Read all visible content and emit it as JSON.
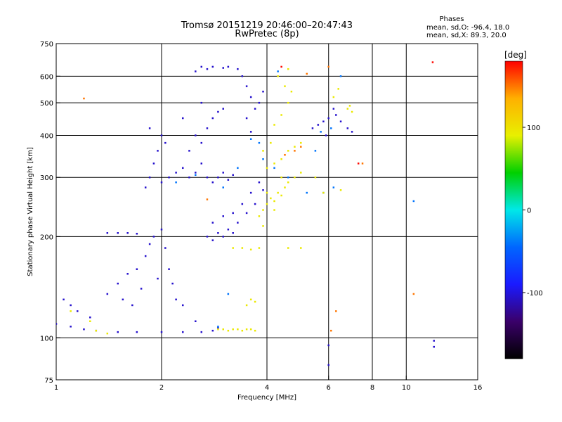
{
  "chart_data": {
    "type": "scatter",
    "title": "Tromsø 20151219 20:46:00–20:47:43",
    "subtitle": "RwPretec (8p)",
    "xlabel": "Frequency [MHz]",
    "ylabel": "Stationary phase Virtual Height [km]",
    "x_scale": "log",
    "y_scale": "log",
    "xlim": [
      1,
      16
    ],
    "ylim": [
      75,
      750
    ],
    "x_ticks": [
      1,
      2,
      4,
      6,
      8,
      10,
      16
    ],
    "y_ticks": [
      75,
      100,
      200,
      300,
      400,
      500,
      600,
      750
    ],
    "x_grid": [
      2,
      4,
      6,
      8,
      10
    ],
    "y_grid": [
      100,
      200,
      300,
      400,
      500,
      600
    ],
    "grid": true,
    "stats_header": "Phases",
    "stats_lines": [
      "mean, sd,O: -96.4, 18.0",
      "mean, sd,X: 89.3, 20.0"
    ],
    "colorbar": {
      "label": "[deg]",
      "range": [
        -180,
        180
      ],
      "ticks": [
        100,
        0,
        -100
      ],
      "colormap": [
        "#000000",
        "#3a006a",
        "#1a1aff",
        "#0066ff",
        "#00e8e8",
        "#00d000",
        "#e8f000",
        "#ffb000",
        "#ff0000"
      ]
    },
    "series": [
      {
        "phase_deg": -105,
        "points": [
          {
            "x": 1.0,
            "y": 110
          },
          {
            "x": 1.1,
            "y": 108
          },
          {
            "x": 1.2,
            "y": 106
          },
          {
            "x": 1.3,
            "y": 105
          },
          {
            "x": 1.5,
            "y": 104
          },
          {
            "x": 1.7,
            "y": 104
          },
          {
            "x": 2.0,
            "y": 104
          },
          {
            "x": 2.3,
            "y": 104
          },
          {
            "x": 2.6,
            "y": 104
          },
          {
            "x": 2.8,
            "y": 105
          },
          {
            "x": 1.05,
            "y": 130
          },
          {
            "x": 1.1,
            "y": 125
          },
          {
            "x": 1.15,
            "y": 120
          },
          {
            "x": 1.25,
            "y": 115
          },
          {
            "x": 1.4,
            "y": 135
          },
          {
            "x": 1.5,
            "y": 145
          },
          {
            "x": 1.6,
            "y": 155
          },
          {
            "x": 1.7,
            "y": 160
          },
          {
            "x": 1.8,
            "y": 175
          },
          {
            "x": 1.85,
            "y": 190
          },
          {
            "x": 1.9,
            "y": 200
          },
          {
            "x": 2.0,
            "y": 210
          },
          {
            "x": 2.05,
            "y": 185
          },
          {
            "x": 1.75,
            "y": 140
          },
          {
            "x": 1.65,
            "y": 125
          },
          {
            "x": 2.1,
            "y": 160
          },
          {
            "x": 2.15,
            "y": 145
          },
          {
            "x": 2.2,
            "y": 130
          },
          {
            "x": 1.95,
            "y": 150
          },
          {
            "x": 1.55,
            "y": 130
          },
          {
            "x": 1.4,
            "y": 205
          },
          {
            "x": 1.5,
            "y": 205
          },
          {
            "x": 1.6,
            "y": 205
          },
          {
            "x": 1.7,
            "y": 204
          },
          {
            "x": 1.8,
            "y": 280
          },
          {
            "x": 1.85,
            "y": 300
          },
          {
            "x": 1.9,
            "y": 330
          },
          {
            "x": 1.95,
            "y": 360
          },
          {
            "x": 2.0,
            "y": 400
          },
          {
            "x": 1.85,
            "y": 420
          },
          {
            "x": 2.0,
            "y": 290
          },
          {
            "x": 2.1,
            "y": 300
          },
          {
            "x": 2.2,
            "y": 310
          },
          {
            "x": 2.05,
            "y": 380
          },
          {
            "x": 2.3,
            "y": 320
          },
          {
            "x": 2.4,
            "y": 300
          },
          {
            "x": 2.5,
            "y": 310
          },
          {
            "x": 2.6,
            "y": 330
          },
          {
            "x": 2.7,
            "y": 300
          },
          {
            "x": 2.8,
            "y": 290
          },
          {
            "x": 2.9,
            "y": 300
          },
          {
            "x": 3.0,
            "y": 310
          },
          {
            "x": 3.1,
            "y": 295
          },
          {
            "x": 3.2,
            "y": 305
          },
          {
            "x": 2.4,
            "y": 360
          },
          {
            "x": 2.5,
            "y": 400
          },
          {
            "x": 2.6,
            "y": 380
          },
          {
            "x": 2.7,
            "y": 420
          },
          {
            "x": 2.8,
            "y": 450
          },
          {
            "x": 2.9,
            "y": 470
          },
          {
            "x": 3.0,
            "y": 480
          },
          {
            "x": 2.3,
            "y": 450
          },
          {
            "x": 2.6,
            "y": 500
          },
          {
            "x": 2.5,
            "y": 620
          },
          {
            "x": 2.6,
            "y": 640
          },
          {
            "x": 2.7,
            "y": 630
          },
          {
            "x": 2.8,
            "y": 640
          },
          {
            "x": 3.0,
            "y": 635
          },
          {
            "x": 3.1,
            "y": 640
          },
          {
            "x": 3.3,
            "y": 630
          },
          {
            "x": 3.4,
            "y": 600
          },
          {
            "x": 3.5,
            "y": 560
          },
          {
            "x": 3.6,
            "y": 520
          },
          {
            "x": 3.7,
            "y": 480
          },
          {
            "x": 3.8,
            "y": 500
          },
          {
            "x": 3.9,
            "y": 540
          },
          {
            "x": 3.5,
            "y": 450
          },
          {
            "x": 3.6,
            "y": 410
          },
          {
            "x": 2.8,
            "y": 220
          },
          {
            "x": 3.0,
            "y": 230
          },
          {
            "x": 3.2,
            "y": 235
          },
          {
            "x": 3.4,
            "y": 250
          },
          {
            "x": 3.6,
            "y": 270
          },
          {
            "x": 3.8,
            "y": 290
          },
          {
            "x": 2.7,
            "y": 200
          },
          {
            "x": 2.9,
            "y": 205
          },
          {
            "x": 3.1,
            "y": 210
          },
          {
            "x": 3.3,
            "y": 220
          },
          {
            "x": 3.5,
            "y": 235
          },
          {
            "x": 3.7,
            "y": 250
          },
          {
            "x": 3.9,
            "y": 275
          },
          {
            "x": 2.8,
            "y": 195
          },
          {
            "x": 3.0,
            "y": 200
          },
          {
            "x": 3.2,
            "y": 205
          },
          {
            "x": 5.4,
            "y": 420
          },
          {
            "x": 5.6,
            "y": 430
          },
          {
            "x": 5.8,
            "y": 440
          },
          {
            "x": 6.0,
            "y": 450
          },
          {
            "x": 6.3,
            "y": 460
          },
          {
            "x": 6.5,
            "y": 440
          },
          {
            "x": 6.8,
            "y": 420
          },
          {
            "x": 7.0,
            "y": 410
          },
          {
            "x": 5.9,
            "y": 400
          },
          {
            "x": 6.2,
            "y": 480
          },
          {
            "x": 6.0,
            "y": 95
          },
          {
            "x": 6.0,
            "y": 83
          },
          {
            "x": 12.0,
            "y": 98
          },
          {
            "x": 12.0,
            "y": 94
          },
          {
            "x": 2.3,
            "y": 125
          },
          {
            "x": 2.5,
            "y": 112
          },
          {
            "x": 2.9,
            "y": 107
          }
        ]
      },
      {
        "phase_deg": -40,
        "points": [
          {
            "x": 2.2,
            "y": 290
          },
          {
            "x": 2.5,
            "y": 305
          },
          {
            "x": 3.0,
            "y": 280
          },
          {
            "x": 3.3,
            "y": 320
          },
          {
            "x": 3.6,
            "y": 390
          },
          {
            "x": 3.8,
            "y": 380
          },
          {
            "x": 3.9,
            "y": 340
          },
          {
            "x": 4.2,
            "y": 320
          },
          {
            "x": 4.6,
            "y": 300
          },
          {
            "x": 5.2,
            "y": 270
          },
          {
            "x": 5.8,
            "y": 270
          },
          {
            "x": 6.2,
            "y": 280
          },
          {
            "x": 5.5,
            "y": 360
          },
          {
            "x": 5.7,
            "y": 410
          },
          {
            "x": 6.1,
            "y": 420
          },
          {
            "x": 6.5,
            "y": 600
          },
          {
            "x": 4.3,
            "y": 620
          },
          {
            "x": 2.9,
            "y": 108
          },
          {
            "x": 3.1,
            "y": 135
          },
          {
            "x": 10.5,
            "y": 255
          }
        ]
      },
      {
        "phase_deg": 95,
        "points": [
          {
            "x": 2.9,
            "y": 106
          },
          {
            "x": 3.0,
            "y": 106
          },
          {
            "x": 3.1,
            "y": 105
          },
          {
            "x": 3.2,
            "y": 106
          },
          {
            "x": 3.3,
            "y": 106
          },
          {
            "x": 3.4,
            "y": 105
          },
          {
            "x": 3.5,
            "y": 106
          },
          {
            "x": 3.6,
            "y": 106
          },
          {
            "x": 3.7,
            "y": 105
          },
          {
            "x": 1.3,
            "y": 105
          },
          {
            "x": 1.4,
            "y": 103
          },
          {
            "x": 1.25,
            "y": 112
          },
          {
            "x": 1.1,
            "y": 120
          },
          {
            "x": 3.2,
            "y": 185
          },
          {
            "x": 3.4,
            "y": 185
          },
          {
            "x": 3.6,
            "y": 183
          },
          {
            "x": 3.8,
            "y": 185
          },
          {
            "x": 3.5,
            "y": 125
          },
          {
            "x": 3.6,
            "y": 130
          },
          {
            "x": 3.7,
            "y": 128
          },
          {
            "x": 3.8,
            "y": 230
          },
          {
            "x": 3.9,
            "y": 240
          },
          {
            "x": 4.0,
            "y": 250
          },
          {
            "x": 4.1,
            "y": 260
          },
          {
            "x": 4.2,
            "y": 255
          },
          {
            "x": 4.3,
            "y": 270
          },
          {
            "x": 4.4,
            "y": 265
          },
          {
            "x": 4.5,
            "y": 280
          },
          {
            "x": 4.6,
            "y": 290
          },
          {
            "x": 4.8,
            "y": 300
          },
          {
            "x": 5.0,
            "y": 310
          },
          {
            "x": 4.0,
            "y": 270
          },
          {
            "x": 4.2,
            "y": 240
          },
          {
            "x": 3.9,
            "y": 215
          },
          {
            "x": 4.4,
            "y": 300
          },
          {
            "x": 4.0,
            "y": 320
          },
          {
            "x": 4.2,
            "y": 330
          },
          {
            "x": 4.4,
            "y": 340
          },
          {
            "x": 4.6,
            "y": 360
          },
          {
            "x": 4.8,
            "y": 370
          },
          {
            "x": 5.0,
            "y": 380
          },
          {
            "x": 3.9,
            "y": 360
          },
          {
            "x": 4.1,
            "y": 380
          },
          {
            "x": 4.2,
            "y": 430
          },
          {
            "x": 4.4,
            "y": 460
          },
          {
            "x": 4.6,
            "y": 500
          },
          {
            "x": 4.7,
            "y": 540
          },
          {
            "x": 4.5,
            "y": 560
          },
          {
            "x": 4.3,
            "y": 600
          },
          {
            "x": 4.6,
            "y": 630
          },
          {
            "x": 6.8,
            "y": 480
          },
          {
            "x": 6.9,
            "y": 490
          },
          {
            "x": 7.0,
            "y": 470
          },
          {
            "x": 6.4,
            "y": 550
          },
          {
            "x": 6.2,
            "y": 520
          },
          {
            "x": 5.8,
            "y": 270
          },
          {
            "x": 6.5,
            "y": 275
          },
          {
            "x": 5.5,
            "y": 300
          },
          {
            "x": 4.6,
            "y": 185
          },
          {
            "x": 5.0,
            "y": 185
          }
        ]
      },
      {
        "phase_deg": 150,
        "points": [
          {
            "x": 1.2,
            "y": 515
          },
          {
            "x": 4.5,
            "y": 350
          },
          {
            "x": 4.8,
            "y": 360
          },
          {
            "x": 5.0,
            "y": 370
          },
          {
            "x": 6.3,
            "y": 120
          },
          {
            "x": 6.1,
            "y": 105
          },
          {
            "x": 10.5,
            "y": 135
          },
          {
            "x": 7.5,
            "y": 330
          },
          {
            "x": 6.0,
            "y": 640
          },
          {
            "x": 5.2,
            "y": 610
          },
          {
            "x": 2.7,
            "y": 258
          }
        ]
      },
      {
        "phase_deg": 178,
        "points": [
          {
            "x": 11.9,
            "y": 660
          },
          {
            "x": 4.4,
            "y": 640
          },
          {
            "x": 7.3,
            "y": 330
          }
        ]
      }
    ]
  }
}
